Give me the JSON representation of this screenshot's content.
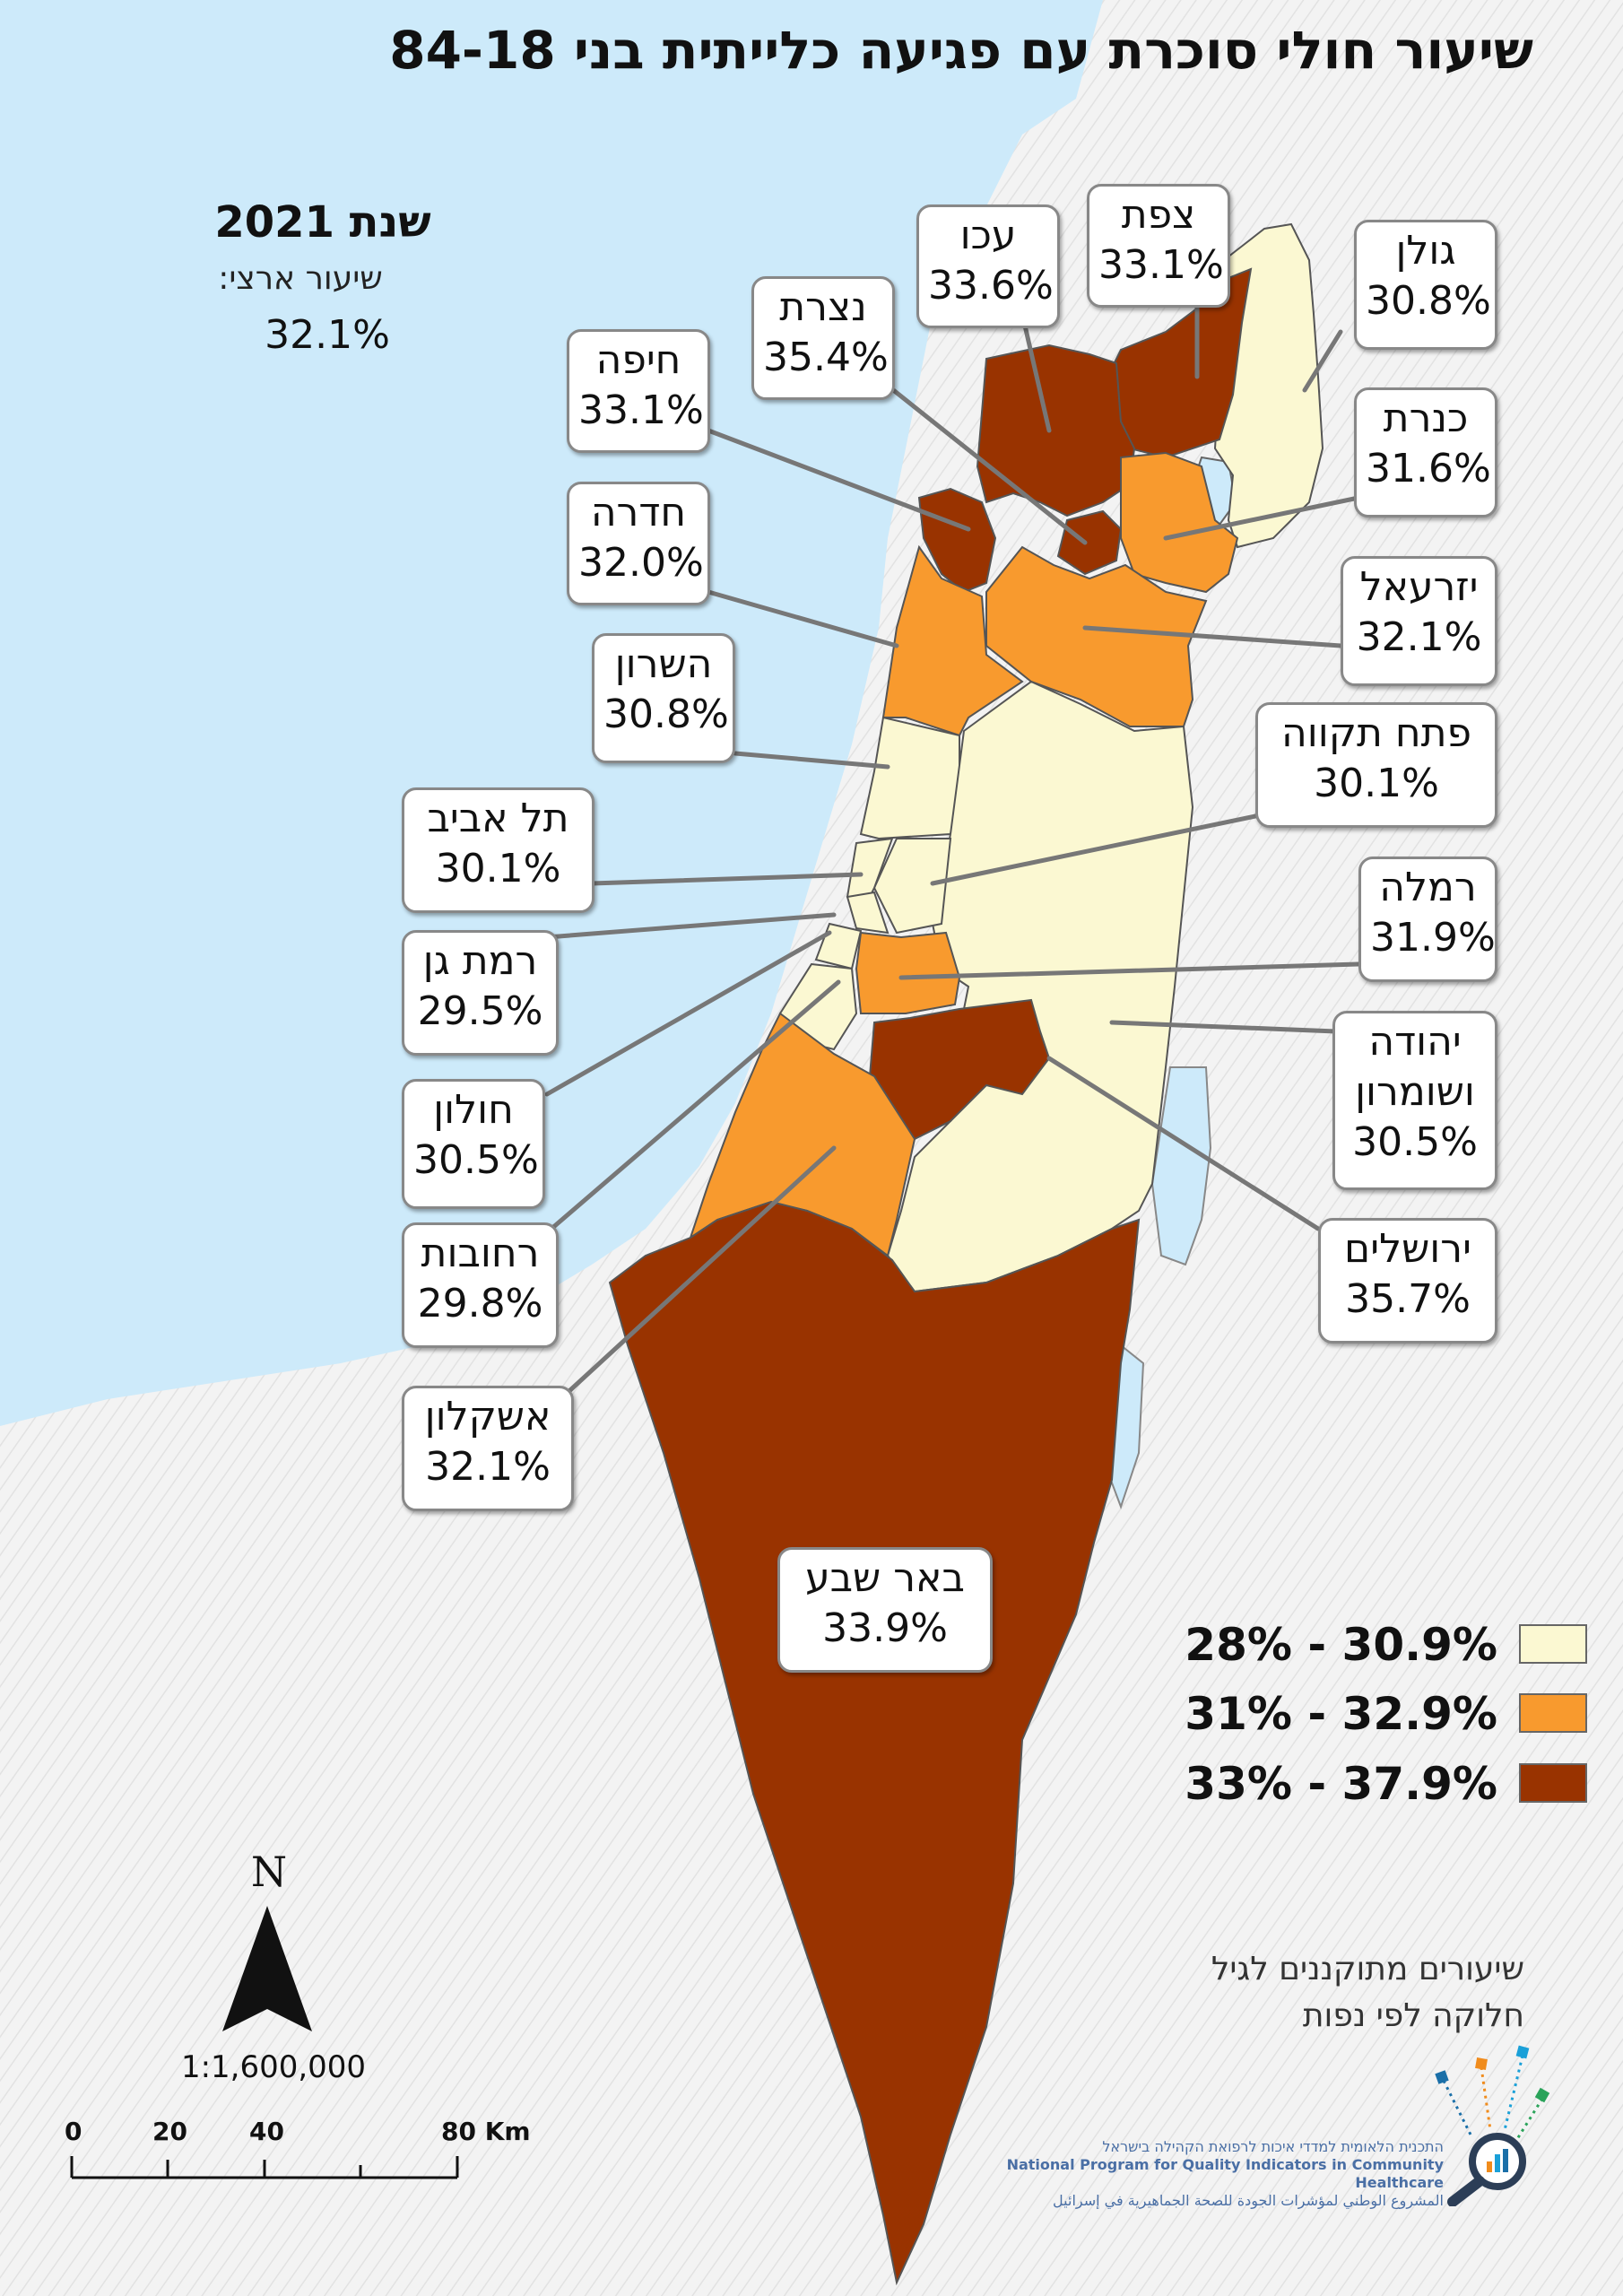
{
  "title": "שיעור חולי סוכרת עם פגיעה כלייתית בני 84-18",
  "year_label": "שנת 2021",
  "national_label": "שיעור ארצי:",
  "national_value": "32.1%",
  "regions": [
    {
      "name": "צפת",
      "value": "33.1%",
      "class": 3
    },
    {
      "name": "עכו",
      "value": "33.6%",
      "class": 3
    },
    {
      "name": "גולן",
      "value": "30.8%",
      "class": 1
    },
    {
      "name": "נצרת",
      "value": "35.4%",
      "class": 3
    },
    {
      "name": "חיפה",
      "value": "33.1%",
      "class": 3
    },
    {
      "name": "כנרת",
      "value": "31.6%",
      "class": 2
    },
    {
      "name": "חדרה",
      "value": "32.0%",
      "class": 2
    },
    {
      "name": "יזרעאל",
      "value": "32.1%",
      "class": 2
    },
    {
      "name": "השרון",
      "value": "30.8%",
      "class": 1
    },
    {
      "name": "פתח תקווה",
      "value": "30.1%",
      "class": 1
    },
    {
      "name": "תל אביב",
      "value": "30.1%",
      "class": 1
    },
    {
      "name": "רמלה",
      "value": "31.9%",
      "class": 2
    },
    {
      "name": "רמת גן",
      "value": "29.5%",
      "class": 1
    },
    {
      "name": "יהודה ושומרון",
      "value": "30.5%",
      "class": 1
    },
    {
      "name": "חולון",
      "value": "30.5%",
      "class": 1
    },
    {
      "name": "ירושלים",
      "value": "35.7%",
      "class": 3
    },
    {
      "name": "רחובות",
      "value": "29.8%",
      "class": 1
    },
    {
      "name": "אשקלון",
      "value": "32.1%",
      "class": 2
    },
    {
      "name": "באר שבע",
      "value": "33.9%",
      "class": 3
    }
  ],
  "legend": [
    {
      "label": "28% - 30.9%",
      "color": "#fbf8d2"
    },
    {
      "label": "31% - 32.9%",
      "color": "#f89a2e"
    },
    {
      "label": "33% - 37.9%",
      "color": "#993300"
    }
  ],
  "note_line1": "שיעורים מתוקננים לגיל",
  "note_line2": "חלוקה לפי נפות",
  "north_label": "N",
  "scale_ratio": "1:1,600,000",
  "scale_ticks": [
    "0",
    "20",
    "40",
    "80 Km"
  ],
  "logo_line1": "התכנית הלאומית למדדי איכות לרפואת הקהילה בישראל",
  "logo_line2": "National Program for Quality Indicators in Community Healthcare",
  "logo_line3": "المشروع الوطني لمؤشرات الجودة للصحة الجماهيرية في إسرائيل",
  "colors": {
    "sea": "#cdeafa",
    "land": "#eeeeee",
    "border": "#555555"
  }
}
